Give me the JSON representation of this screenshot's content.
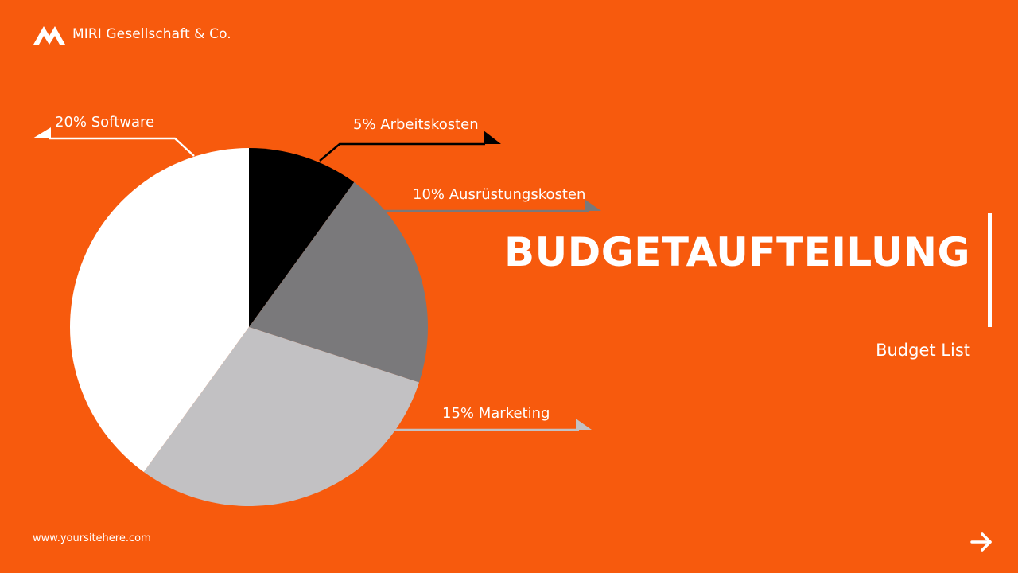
{
  "brand": {
    "name": "MIRI Gesellschaft & Co.",
    "logo_icon": "mountain-logo-icon"
  },
  "title": "BUDGETAUFTEILUNG",
  "subtitle": "Budget List",
  "footer": {
    "website": "www.yoursitehere.com",
    "next_icon": "arrow-right-icon"
  },
  "colors": {
    "background": "#F75A0D",
    "arbeitskosten": "#000000",
    "ausruestungskosten": "#7A797B",
    "marketing": "#C2C1C3",
    "software": "#FFFFFF"
  },
  "chart_data": {
    "type": "pie",
    "start_angle_deg": 0,
    "direction": "clockwise",
    "slices": [
      {
        "label": "5% Arbeitskosten",
        "value": 5,
        "color": "#000000"
      },
      {
        "label": "10% Ausrüstungskosten",
        "value": 10,
        "color": "#7A797B"
      },
      {
        "label": "15% Marketing",
        "value": 15,
        "color": "#C2C1C3"
      },
      {
        "label": "20% Software",
        "value": 20,
        "color": "#FFFFFF"
      }
    ]
  }
}
